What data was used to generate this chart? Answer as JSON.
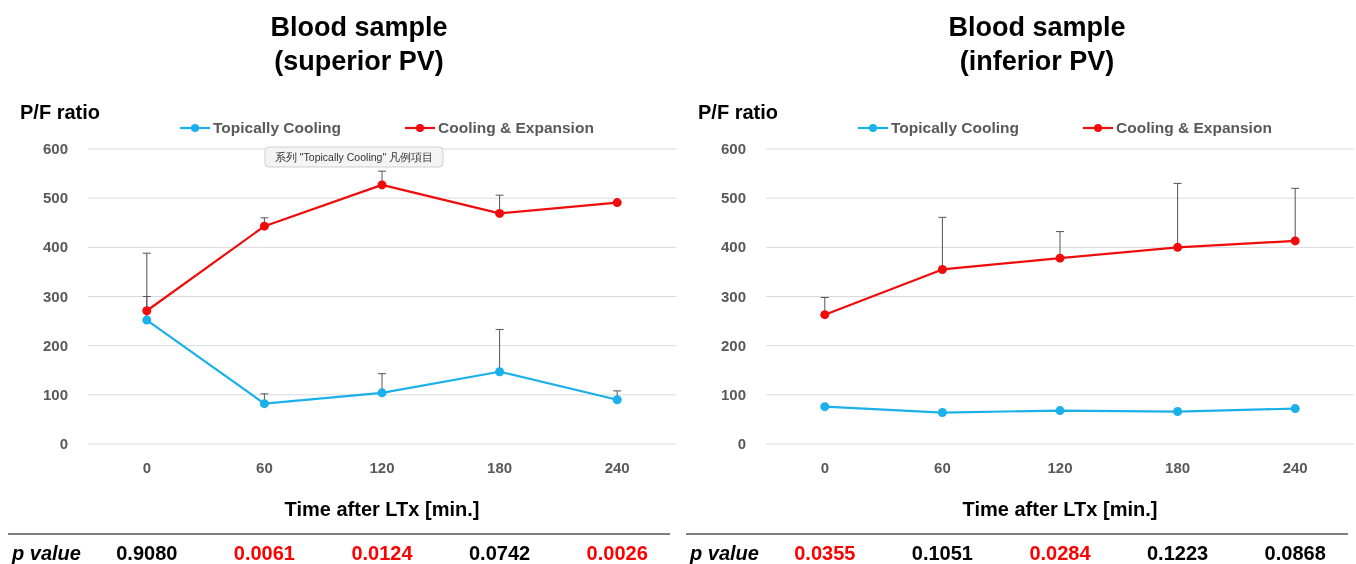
{
  "chart_data": [
    {
      "type": "line",
      "title": "Blood sample\n(superior PV)",
      "ylabel": "P/F ratio",
      "xlabel": "Time after LTx [min.]",
      "categories": [
        "0",
        "60",
        "120",
        "180",
        "240"
      ],
      "series": [
        {
          "name": "Topically Cooling",
          "color": "#1ab0ea",
          "values": [
            252,
            82,
            104,
            147,
            90
          ],
          "errors": [
            [
              252,
              300
            ],
            [
              82,
              102
            ],
            [
              104,
              143
            ],
            [
              147,
              233
            ],
            [
              90,
              108
            ]
          ]
        },
        {
          "name": "Cooling & Expansion",
          "color": "#f00c0c",
          "values": [
            271,
            443,
            527,
            469,
            491
          ],
          "errors": [
            [
              271,
              388
            ],
            [
              443,
              460
            ],
            [
              527,
              555
            ],
            [
              469,
              506
            ],
            null
          ]
        }
      ],
      "ylim": [
        0,
        600
      ],
      "yticks": [
        0,
        100,
        200,
        300,
        400,
        500,
        600
      ],
      "grid": "y",
      "legend": "top",
      "marker": "circle",
      "line_style": "solid",
      "annotations": [
        "系列 \"Topically Cooling\" 凡例項目",
        "p value",
        "0.9080",
        "0.0061",
        "0.0124",
        "0.0742",
        "0.0026"
      ]
    },
    {
      "type": "line",
      "title": "Blood sample\n(inferior PV)",
      "ylabel": "P/F ratio",
      "xlabel": "Time after LTx [min.]",
      "categories": [
        "0",
        "60",
        "120",
        "180",
        "240"
      ],
      "series": [
        {
          "name": "Topically Cooling",
          "color": "#1ab0ea",
          "values": [
            76,
            64,
            68,
            66,
            72
          ]
        },
        {
          "name": "Cooling & Expansion",
          "color": "#f00c0c",
          "values": [
            263,
            355,
            378,
            400,
            413
          ],
          "errors": [
            [
              263,
              298
            ],
            [
              355,
              461
            ],
            [
              378,
              432
            ],
            [
              400,
              530
            ],
            [
              413,
              520
            ]
          ]
        }
      ],
      "ylim": [
        0,
        600
      ],
      "yticks": [
        0,
        100,
        200,
        300,
        400,
        500,
        600
      ],
      "grid": "y",
      "legend": "top",
      "marker": "circle",
      "line_style": "solid",
      "annotations": [
        "p value",
        "0.0355",
        "0.1051",
        "0.0284",
        "0.1223",
        "0.0868"
      ]
    }
  ]
}
